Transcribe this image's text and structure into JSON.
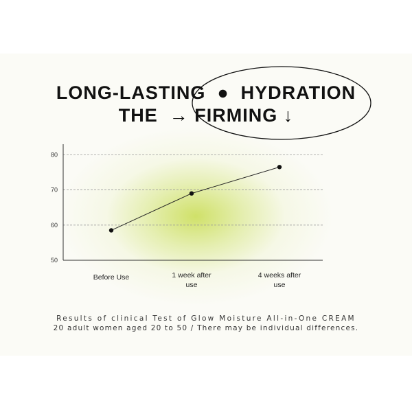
{
  "headline": {
    "line1": "LONG-LASTING  ●  HYDRATION",
    "line2": "THE  → FIRMING ↓"
  },
  "chart_data": {
    "type": "line",
    "categories": [
      "Before Use",
      "1 week after use",
      "4 weeks after use"
    ],
    "category_lines": [
      [
        "Before Use"
      ],
      [
        "1 week after",
        "use"
      ],
      [
        "4 weeks after",
        "use"
      ]
    ],
    "values": [
      58.5,
      69,
      76.5
    ],
    "y_ticks": [
      "80",
      "70",
      "60",
      "50"
    ],
    "y_tick_values": [
      80,
      70,
      60,
      50
    ],
    "ylim": [
      50,
      83
    ],
    "grid": true,
    "line_color": "#222222",
    "glow_color": "#c8dc50"
  },
  "caption": {
    "line1": "Results of clinical Test of Glow Moisture All-in-One CREAM",
    "line2": "20 adult women aged 20 to 50 / There may be individual differences."
  }
}
